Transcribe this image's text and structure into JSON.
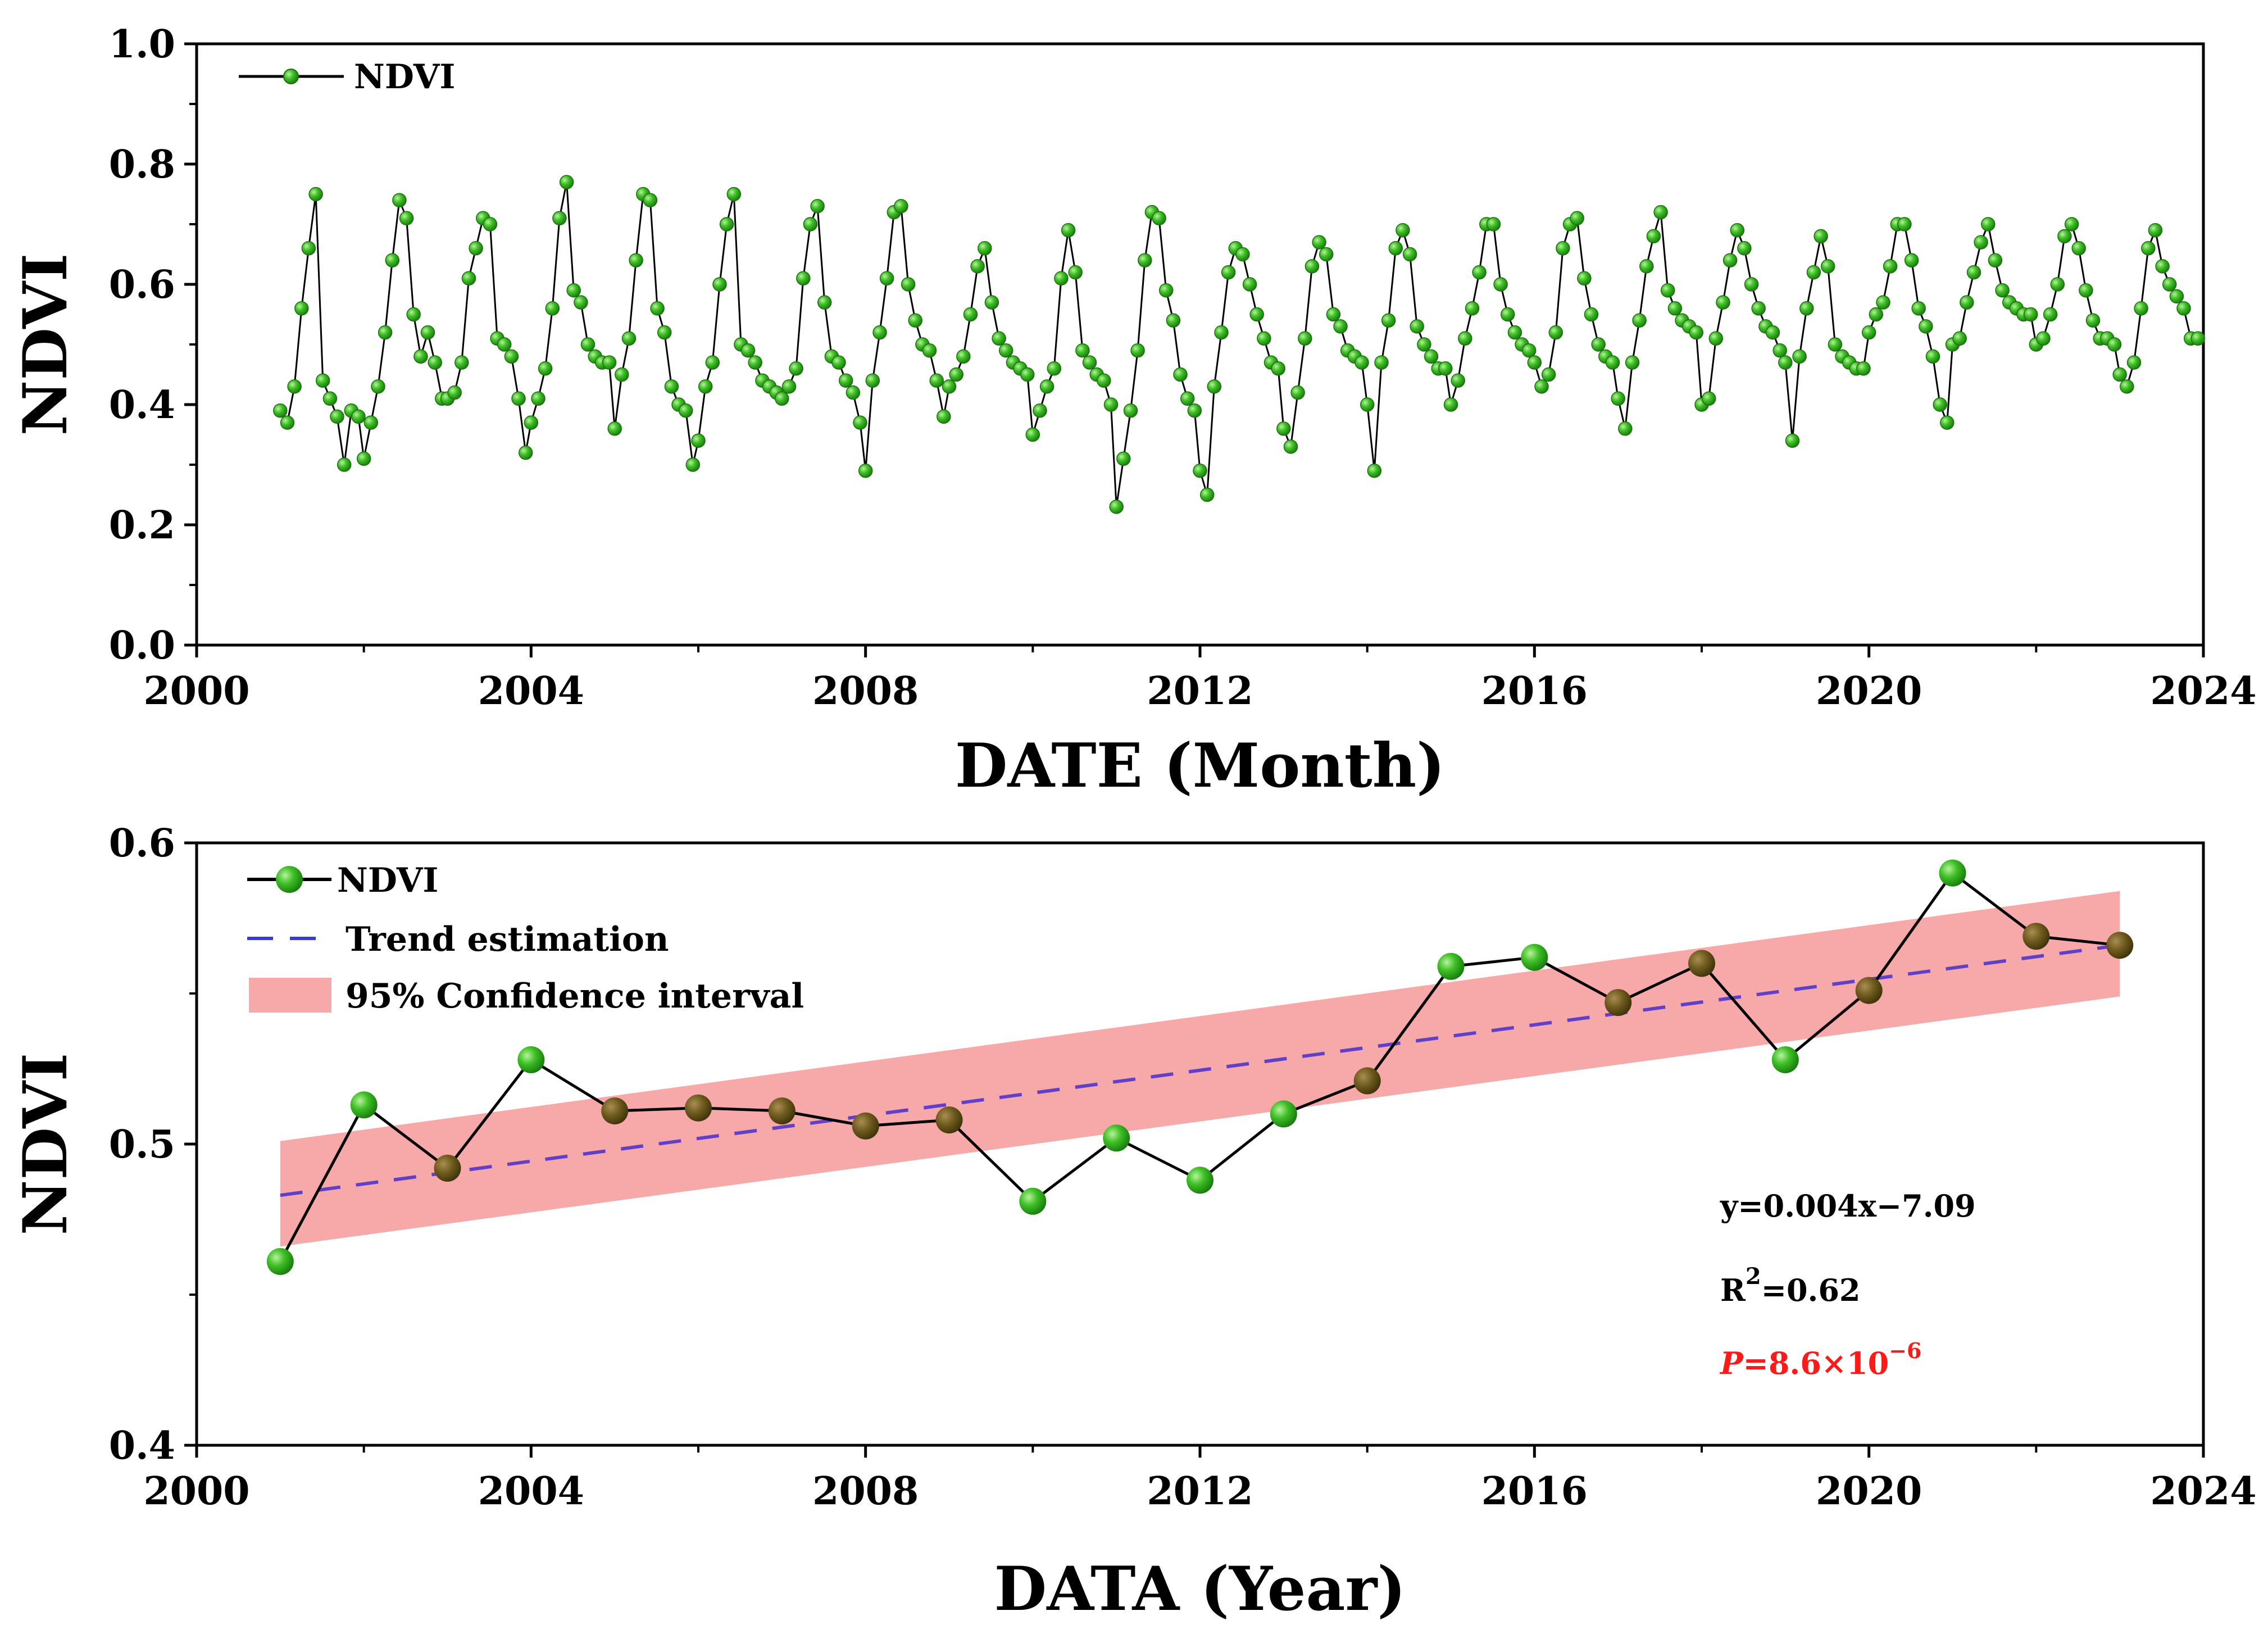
{
  "chart_data": [
    {
      "type": "line",
      "xlabel": "DATE (Month)",
      "ylabel": "NDVI",
      "xlim": [
        2000,
        2024
      ],
      "ylim": [
        0.0,
        1.0
      ],
      "xticks": [
        "2000",
        "2004",
        "2008",
        "2012",
        "2016",
        "2020",
        "2024"
      ],
      "yticks": [
        "0.0",
        "0.2",
        "0.4",
        "0.6",
        "0.8",
        "1.0"
      ],
      "grid": false,
      "legend": {
        "position": "top-left",
        "entries": [
          "NDVI"
        ]
      },
      "colors": {
        "line": "#000000",
        "marker": "#2a9d1a",
        "marker_light": "#6fdc50"
      },
      "series": [
        {
          "name": "NDVI",
          "note": "monthly values, 12 per year starting at year+0.0",
          "years": [
            2001,
            2002,
            2003,
            2004,
            2005,
            2006,
            2007,
            2008,
            2009,
            2010,
            2011,
            2012,
            2013,
            2014,
            2015,
            2016,
            2017,
            2018,
            2019,
            2020,
            2021,
            2022,
            2023
          ],
          "values": [
            [
              0.39,
              0.37,
              0.43,
              0.56,
              0.66,
              0.75,
              0.44,
              0.41,
              0.38,
              0.3,
              0.39,
              0.38
            ],
            [
              0.31,
              0.37,
              0.43,
              0.52,
              0.64,
              0.74,
              0.71,
              0.55,
              0.48,
              0.52,
              0.47,
              0.41
            ],
            [
              0.41,
              0.42,
              0.47,
              0.61,
              0.66,
              0.71,
              0.7,
              0.51,
              0.5,
              0.48,
              0.41,
              0.32
            ],
            [
              0.37,
              0.41,
              0.46,
              0.56,
              0.71,
              0.77,
              0.59,
              0.57,
              0.5,
              0.48,
              0.47,
              0.47
            ],
            [
              0.36,
              0.45,
              0.51,
              0.64,
              0.75,
              0.74,
              0.56,
              0.52,
              0.43,
              0.4,
              0.39,
              0.3
            ],
            [
              0.34,
              0.43,
              0.47,
              0.6,
              0.7,
              0.75,
              0.5,
              0.49,
              0.47,
              0.44,
              0.43,
              0.42
            ],
            [
              0.41,
              0.43,
              0.46,
              0.61,
              0.7,
              0.73,
              0.57,
              0.48,
              0.47,
              0.44,
              0.42,
              0.37
            ],
            [
              0.29,
              0.44,
              0.52,
              0.61,
              0.72,
              0.73,
              0.6,
              0.54,
              0.5,
              0.49,
              0.44,
              0.38
            ],
            [
              0.43,
              0.45,
              0.48,
              0.55,
              0.63,
              0.66,
              0.57,
              0.51,
              0.49,
              0.47,
              0.46,
              0.45
            ],
            [
              0.35,
              0.39,
              0.43,
              0.46,
              0.61,
              0.69,
              0.62,
              0.49,
              0.47,
              0.45,
              0.44,
              0.4
            ],
            [
              0.23,
              0.31,
              0.39,
              0.49,
              0.64,
              0.72,
              0.71,
              0.59,
              0.54,
              0.45,
              0.41,
              0.39
            ],
            [
              0.29,
              0.25,
              0.43,
              0.52,
              0.62,
              0.66,
              0.65,
              0.6,
              0.55,
              0.51,
              0.47,
              0.46
            ],
            [
              0.36,
              0.33,
              0.42,
              0.51,
              0.63,
              0.67,
              0.65,
              0.55,
              0.53,
              0.49,
              0.48,
              0.47
            ],
            [
              0.4,
              0.29,
              0.47,
              0.54,
              0.66,
              0.69,
              0.65,
              0.53,
              0.5,
              0.48,
              0.46,
              0.46
            ],
            [
              0.4,
              0.44,
              0.51,
              0.56,
              0.62,
              0.7,
              0.7,
              0.6,
              0.55,
              0.52,
              0.5,
              0.49
            ],
            [
              0.47,
              0.43,
              0.45,
              0.52,
              0.66,
              0.7,
              0.71,
              0.61,
              0.55,
              0.5,
              0.48,
              0.47
            ],
            [
              0.41,
              0.36,
              0.47,
              0.54,
              0.63,
              0.68,
              0.72,
              0.59,
              0.56,
              0.54,
              0.53,
              0.52
            ],
            [
              0.4,
              0.41,
              0.51,
              0.57,
              0.64,
              0.69,
              0.66,
              0.6,
              0.56,
              0.53,
              0.52,
              0.49
            ],
            [
              0.47,
              0.34,
              0.48,
              0.56,
              0.62,
              0.68,
              0.63,
              0.5,
              0.48,
              0.47,
              0.46,
              0.46
            ],
            [
              0.52,
              0.55,
              0.57,
              0.63,
              0.7,
              0.7,
              0.64,
              0.56,
              0.53,
              0.48,
              0.4,
              0.37
            ],
            [
              0.5,
              0.51,
              0.57,
              0.62,
              0.67,
              0.7,
              0.64,
              0.59,
              0.57,
              0.56,
              0.55,
              0.55
            ],
            [
              0.5,
              0.51,
              0.55,
              0.6,
              0.68,
              0.7,
              0.66,
              0.59,
              0.54,
              0.51,
              0.51,
              0.5
            ],
            [
              0.45,
              0.43,
              0.47,
              0.56,
              0.66,
              0.69,
              0.63,
              0.6,
              0.58,
              0.56,
              0.51,
              0.51
            ]
          ]
        }
      ]
    },
    {
      "type": "line",
      "xlabel": "DATA (Year)",
      "ylabel": "NDVI",
      "xlim": [
        2000,
        2024
      ],
      "ylim": [
        0.4,
        0.6
      ],
      "xticks": [
        "2000",
        "2004",
        "2008",
        "2012",
        "2016",
        "2020",
        "2024"
      ],
      "yticks": [
        "0.4",
        "0.5",
        "0.6"
      ],
      "grid": false,
      "legend": {
        "position": "top-left",
        "entries": [
          "NDVI",
          "Trend estimation",
          "95% Confidence interval"
        ]
      },
      "colors": {
        "line": "#000000",
        "marker": "#2a9d1a",
        "marker_light": "#6fdc50",
        "trend": "#4a3fd0",
        "band": "#f7a8a8"
      },
      "x": [
        2001,
        2002,
        2003,
        2004,
        2005,
        2006,
        2007,
        2008,
        2009,
        2010,
        2011,
        2012,
        2013,
        2014,
        2015,
        2016,
        2017,
        2018,
        2019,
        2020,
        2021,
        2022,
        2023
      ],
      "series": [
        {
          "name": "NDVI",
          "values": [
            0.461,
            0.513,
            0.492,
            0.528,
            0.511,
            0.512,
            0.511,
            0.506,
            0.508,
            0.481,
            0.502,
            0.488,
            0.51,
            0.521,
            0.559,
            0.562,
            0.547,
            0.56,
            0.528,
            0.551,
            0.59,
            0.569,
            0.566
          ]
        },
        {
          "name": "Trend estimation",
          "x": [
            2001,
            2023
          ],
          "values": [
            0.483,
            0.566
          ]
        },
        {
          "name": "95% Confidence interval",
          "x": [
            2001,
            2023
          ],
          "lower": [
            0.466,
            0.549
          ],
          "upper": [
            0.501,
            0.584
          ]
        }
      ],
      "annotations": {
        "equation": "y=0.004x−7.09",
        "r2_prefix": "R",
        "r2_sup": "2",
        "r2_value": "=0.62",
        "p_italic": "P",
        "p_value": "=8.6×10",
        "p_exp": "−6"
      }
    }
  ]
}
